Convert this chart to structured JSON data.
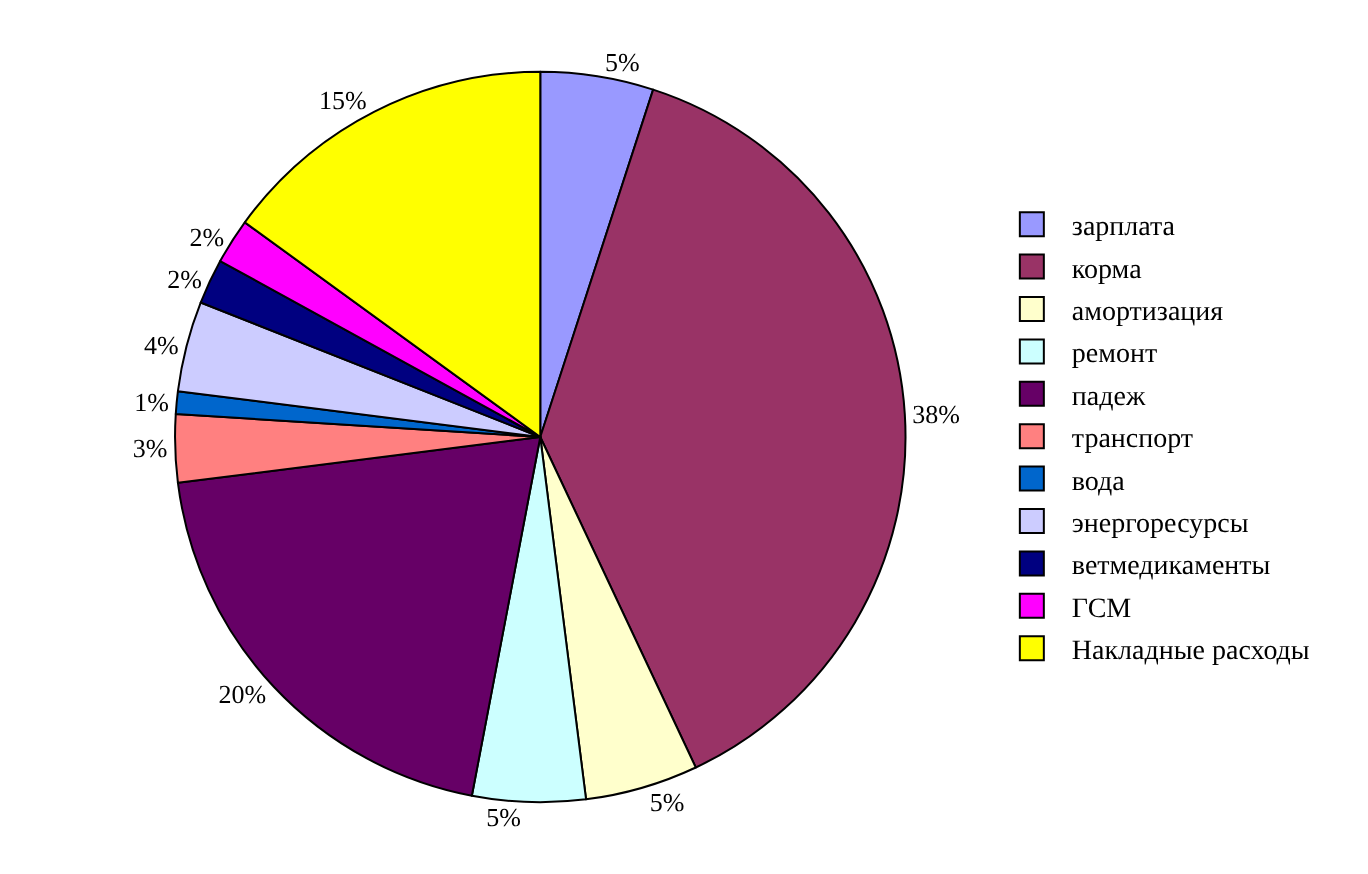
{
  "chart_data": {
    "type": "pie",
    "categories": [
      "зарплата",
      "корма",
      "амортизация",
      "ремонт",
      "падеж",
      "транспорт",
      "вода",
      "энергоресурсы",
      "ветмедикаменты",
      "ГСМ",
      "Накладные расходы"
    ],
    "values": [
      5,
      38,
      5,
      5,
      20,
      3,
      1,
      4,
      2,
      2,
      15
    ],
    "colors": [
      "#9999ff",
      "#993366",
      "#ffffcc",
      "#ccffff",
      "#660066",
      "#ff8080",
      "#0066cc",
      "#ccccff",
      "#000080",
      "#ff00ff",
      "#ffff00"
    ],
    "value_labels": [
      "5%",
      "38%",
      "5%",
      "5%",
      "20%",
      "3%",
      "1%",
      "4%",
      "2%",
      "2%",
      "15%"
    ],
    "legend": "right"
  }
}
